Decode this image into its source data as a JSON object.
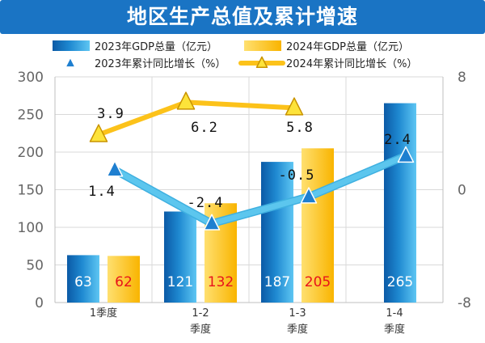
{
  "title": "地区生产总值及累计增速",
  "colors": {
    "title_bg": "#1a74c4",
    "bar_2023": "#1e88d0",
    "bar_2024": "#fdbf12",
    "line_2023": "#5cc6ee",
    "line_2024": "#fcc21a",
    "value_2024_text": "#e8131b",
    "axis_text": "#666666"
  },
  "chart_data": {
    "type": "bar",
    "title": "地区生产总值及累计增速",
    "categories": [
      "1季度",
      "1-2季度",
      "1-3季度",
      "1-4季度"
    ],
    "category_lines": [
      [
        "1季度"
      ],
      [
        "1-2",
        "季度"
      ],
      [
        "1-3",
        "季度"
      ],
      [
        "1-4",
        "季度"
      ]
    ],
    "y_left": {
      "min": 0,
      "max": 300,
      "step": 50,
      "ticks": [
        "0",
        "50",
        "100",
        "150",
        "200",
        "250",
        "300"
      ]
    },
    "y_right": {
      "min": -8,
      "max": 8,
      "ticks": [
        "-8",
        "0",
        "8"
      ]
    },
    "grid": true,
    "legend_position": "top",
    "series": [
      {
        "name": "2023年GDP总量（亿元）",
        "kind": "bar",
        "axis": "left",
        "values": [
          63,
          121,
          187,
          265
        ],
        "labels": [
          "63",
          "121",
          "187",
          "265"
        ]
      },
      {
        "name": "2024年GDP总量（亿元）",
        "kind": "bar",
        "axis": "left",
        "values": [
          62,
          132,
          205,
          null
        ],
        "labels": [
          "62",
          "132",
          "205",
          ""
        ]
      },
      {
        "name": "2023年累计同比增长（%）",
        "kind": "line",
        "axis": "right",
        "values": [
          1.4,
          -2.4,
          -0.5,
          2.4
        ],
        "labels": [
          "1.4",
          "-2.4",
          "-0.5",
          "2.4"
        ]
      },
      {
        "name": "2024年累计同比增长（%）",
        "kind": "line",
        "axis": "right",
        "values": [
          3.9,
          6.2,
          5.8,
          null
        ],
        "labels": [
          "3.9",
          "6.2",
          "5.8",
          ""
        ]
      }
    ]
  }
}
